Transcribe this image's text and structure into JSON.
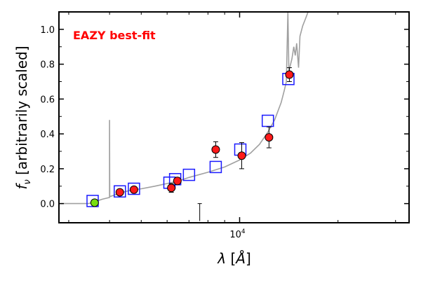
{
  "chart_data": {
    "type": "scatter",
    "title": "",
    "annotation": "EAZY best-fit",
    "annotation_color": "#ff0000",
    "xlabel": "λ [Å]",
    "ylabel": "f_ν [arbitrarily scaled]",
    "x_scale": "log",
    "xlim": [
      2800,
      33000
    ],
    "ylim": [
      -0.11,
      1.1
    ],
    "x_ticks": [
      {
        "value": 10000,
        "label": "10",
        "exp": "4"
      }
    ],
    "y_ticks": [
      {
        "value": 0.0,
        "label": "0.0"
      },
      {
        "value": 0.2,
        "label": "0.2"
      },
      {
        "value": 0.4,
        "label": "0.4"
      },
      {
        "value": 0.6,
        "label": "0.6"
      },
      {
        "value": 0.8,
        "label": "0.8"
      },
      {
        "value": 1.0,
        "label": "1.0"
      }
    ],
    "grid": false,
    "colors": {
      "model_line": "#a0a0a0",
      "template_box": "#1a1aff",
      "observed_fill": "#ff1a1a",
      "upper_limit_fill": "#77dd11",
      "errorbar": "#000000"
    },
    "series": [
      {
        "kind": "template_photometry",
        "marker": "open-square",
        "points": [
          {
            "x": 3550,
            "y": 0.015
          },
          {
            "x": 4300,
            "y": 0.07
          },
          {
            "x": 4750,
            "y": 0.085
          },
          {
            "x": 6100,
            "y": 0.12
          },
          {
            "x": 6350,
            "y": 0.14
          },
          {
            "x": 7000,
            "y": 0.165
          },
          {
            "x": 8450,
            "y": 0.21
          },
          {
            "x": 10050,
            "y": 0.31
          },
          {
            "x": 12200,
            "y": 0.475
          },
          {
            "x": 14100,
            "y": 0.715
          }
        ]
      },
      {
        "kind": "observed_photometry",
        "marker": "filled-circle",
        "points": [
          {
            "x": 4300,
            "y": 0.065,
            "err": 0.015
          },
          {
            "x": 4750,
            "y": 0.08,
            "err": 0.015
          },
          {
            "x": 6180,
            "y": 0.09,
            "err": 0.025
          },
          {
            "x": 6450,
            "y": 0.13,
            "err": 0.02
          },
          {
            "x": 8450,
            "y": 0.31,
            "err": 0.045
          },
          {
            "x": 10150,
            "y": 0.275,
            "err": 0.075
          },
          {
            "x": 12300,
            "y": 0.38,
            "err": 0.06
          },
          {
            "x": 14200,
            "y": 0.74,
            "err": 0.04
          }
        ]
      },
      {
        "kind": "upper_limit",
        "marker": "filled-circle",
        "points": [
          {
            "x": 3600,
            "y": 0.005
          }
        ]
      },
      {
        "kind": "lone_errorbar",
        "points": [
          {
            "x": 7550,
            "y": -0.1,
            "y_top": 0.0
          }
        ]
      },
      {
        "kind": "model_sed",
        "marker": "line",
        "points": [
          {
            "x": 2800,
            "y": 0.0
          },
          {
            "x": 3450,
            "y": 0.0
          },
          {
            "x": 3600,
            "y": 0.01
          },
          {
            "x": 3800,
            "y": 0.025
          },
          {
            "x": 4000,
            "y": 0.035
          },
          {
            "x": 4000,
            "y": 0.48
          },
          {
            "x": 4005,
            "y": 0.04
          },
          {
            "x": 4300,
            "y": 0.06
          },
          {
            "x": 4600,
            "y": 0.075
          },
          {
            "x": 5000,
            "y": 0.085
          },
          {
            "x": 5500,
            "y": 0.1
          },
          {
            "x": 6000,
            "y": 0.115
          },
          {
            "x": 6500,
            "y": 0.13
          },
          {
            "x": 7000,
            "y": 0.15
          },
          {
            "x": 8000,
            "y": 0.18
          },
          {
            "x": 9000,
            "y": 0.21
          },
          {
            "x": 10000,
            "y": 0.25
          },
          {
            "x": 10800,
            "y": 0.29
          },
          {
            "x": 11500,
            "y": 0.34
          },
          {
            "x": 12200,
            "y": 0.41
          },
          {
            "x": 12800,
            "y": 0.48
          },
          {
            "x": 13400,
            "y": 0.58
          },
          {
            "x": 13700,
            "y": 0.65
          },
          {
            "x": 13900,
            "y": 0.7
          },
          {
            "x": 14050,
            "y": 1.1
          },
          {
            "x": 14150,
            "y": 0.76
          },
          {
            "x": 14450,
            "y": 0.83
          },
          {
            "x": 14650,
            "y": 0.9
          },
          {
            "x": 14800,
            "y": 0.85
          },
          {
            "x": 14950,
            "y": 0.92
          },
          {
            "x": 15150,
            "y": 0.78
          },
          {
            "x": 15300,
            "y": 0.96
          },
          {
            "x": 15600,
            "y": 1.02
          },
          {
            "x": 15900,
            "y": 1.06
          },
          {
            "x": 16200,
            "y": 1.1
          }
        ]
      }
    ]
  }
}
